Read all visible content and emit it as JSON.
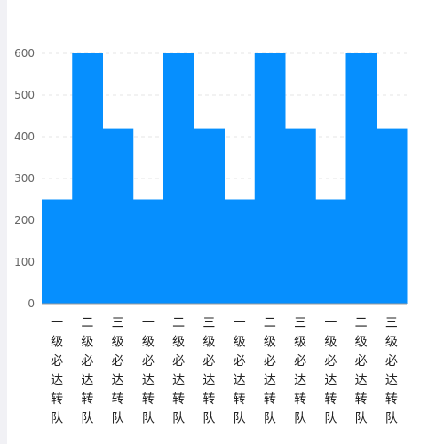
{
  "chart_data": {
    "type": "bar",
    "title": "",
    "xlabel": "",
    "ylabel": "",
    "categories": [
      "一级必达转队",
      "二级必达转队",
      "三级必达转队",
      "一级必达转队",
      "二级必达转队",
      "三级必达转队",
      "一级必达转队",
      "二级必达转队",
      "三级必达转队",
      "一级必达转队",
      "二级必达转队",
      "三级必达转队"
    ],
    "values": [
      250,
      600,
      420,
      250,
      600,
      420,
      250,
      600,
      420,
      250,
      600,
      420
    ],
    "ylim": [
      0,
      600
    ],
    "yticks": [
      "0",
      "100",
      "200",
      "300",
      "400",
      "500",
      "600"
    ],
    "grid": true,
    "bar_color": "#068ffe",
    "grid_color": "#e6e6e6",
    "axis_color": "#999999"
  }
}
